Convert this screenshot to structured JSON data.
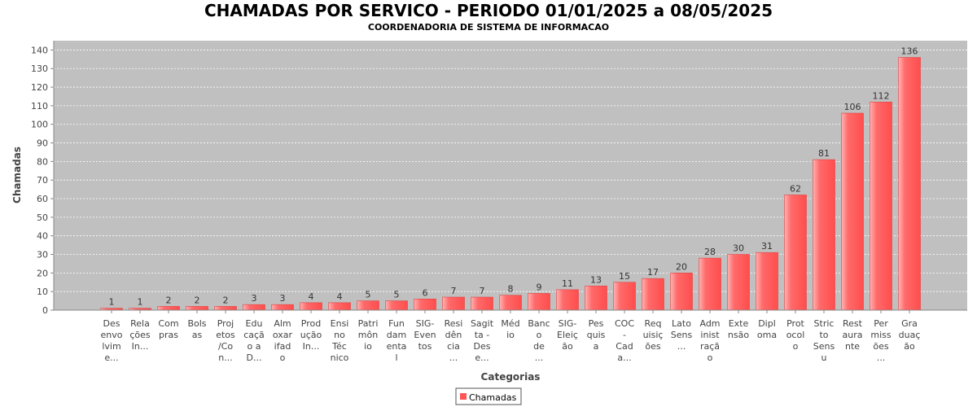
{
  "chart_data": {
    "type": "bar",
    "title": "CHAMADAS POR SERVICO - PERIODO 01/01/2025 a 08/05/2025",
    "subtitle": "COORDENADORIA DE SISTEMA DE INFORMACAO",
    "xlabel": "Categorias",
    "ylabel": "Chamadas",
    "ylim": [
      0,
      145
    ],
    "yticks": [
      0,
      10,
      20,
      30,
      40,
      50,
      60,
      70,
      80,
      90,
      100,
      110,
      120,
      130,
      140
    ],
    "grid": true,
    "legend_position": "bottom",
    "series": [
      {
        "name": "Chamadas",
        "color": "#ff5555",
        "values": [
          1,
          1,
          2,
          2,
          2,
          3,
          3,
          4,
          4,
          5,
          5,
          6,
          7,
          7,
          8,
          9,
          11,
          13,
          15,
          17,
          20,
          28,
          30,
          31,
          62,
          81,
          106,
          112,
          136
        ]
      }
    ],
    "categories": [
      [
        "Des",
        "envo",
        "lvim",
        "e..."
      ],
      [
        "Rela",
        "ções",
        "In..."
      ],
      [
        "Com",
        "pras"
      ],
      [
        "Bols",
        "as"
      ],
      [
        "Proj",
        "etos",
        "/Co",
        "n..."
      ],
      [
        "Edu",
        "caçã",
        "o a",
        "D..."
      ],
      [
        "Alm",
        "oxar",
        "ifad",
        "o"
      ],
      [
        "Prod",
        "ução",
        "In..."
      ],
      [
        "Ensi",
        "no",
        "Téc",
        "nico"
      ],
      [
        "Patri",
        "môn",
        "io"
      ],
      [
        "Fun",
        "dam",
        "enta",
        "l"
      ],
      [
        "SIG-",
        "Even",
        "tos"
      ],
      [
        "Resi",
        "dên",
        "cia",
        "..."
      ],
      [
        "Sagit",
        "ta -",
        "Des",
        "e..."
      ],
      [
        "Méd",
        "io"
      ],
      [
        "Banc",
        "o",
        "de",
        "..."
      ],
      [
        "SIG-",
        "Eleiç",
        "ão"
      ],
      [
        "Pes",
        "quis",
        "a"
      ],
      [
        "COC",
        "-",
        "Cad",
        "a..."
      ],
      [
        "Req",
        "uisiç",
        "ões"
      ],
      [
        "Lato",
        "Sens",
        "..."
      ],
      [
        "Adm",
        "inist",
        "raçã",
        "o"
      ],
      [
        "Exte",
        "nsão"
      ],
      [
        "Dipl",
        "oma"
      ],
      [
        "Prot",
        "ocol",
        "o"
      ],
      [
        "Stric",
        "to",
        "Sens",
        "u"
      ],
      [
        "Rest",
        "aura",
        "nte"
      ],
      [
        "Per",
        "miss",
        "ões",
        "..."
      ],
      [
        "Gra",
        "duaç",
        "ão"
      ]
    ],
    "colors": {
      "plot_background": "#c0c0c0",
      "gridline": "#ffffff",
      "bar": "#ff5555",
      "bar_highlight": "#ffb3b3"
    }
  }
}
